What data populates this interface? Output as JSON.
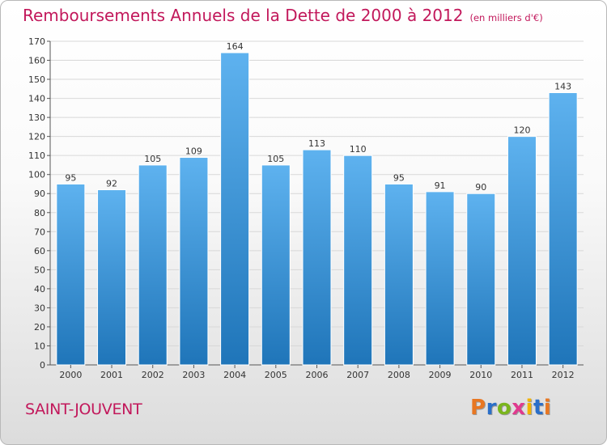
{
  "header": {
    "title": "Remboursements Annuels de la Dette de 2000 à 2012",
    "subtitle": "(en milliers d'€)"
  },
  "commune": "SAINT-JOUVENT",
  "logo": {
    "letters": [
      "P",
      "r",
      "o",
      "x",
      "i",
      "t",
      "i"
    ],
    "colors": [
      "#e87722",
      "#2a6fc9",
      "#7ab51d",
      "#e03a8e",
      "#f2b300",
      "#2a6fc9",
      "#e87722"
    ]
  },
  "colors": {
    "bar_light": "#5eb2ef",
    "bar_dark": "#1f75b9",
    "text_accent": "#c2185b",
    "grid": "#d8d8d8"
  },
  "chart_data": {
    "type": "bar",
    "title": "Remboursements Annuels de la Dette de 2000 à 2012",
    "subtitle": "(en milliers d'€)",
    "categories": [
      "2000",
      "2001",
      "2002",
      "2003",
      "2004",
      "2005",
      "2006",
      "2007",
      "2008",
      "2009",
      "2010",
      "2011",
      "2012"
    ],
    "values": [
      95,
      92,
      105,
      109,
      164,
      105,
      113,
      110,
      95,
      91,
      90,
      120,
      143
    ],
    "ylim": [
      0,
      170
    ],
    "yticks": [
      0,
      10,
      20,
      30,
      40,
      50,
      60,
      70,
      80,
      90,
      100,
      110,
      120,
      130,
      140,
      150,
      160,
      170
    ],
    "grid": true
  }
}
